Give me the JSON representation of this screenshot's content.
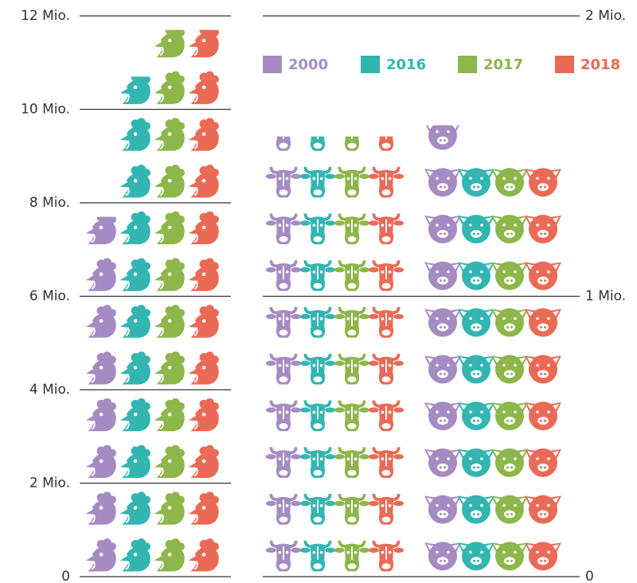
{
  "chart_data": {
    "type": "pictograph",
    "categories": [
      null,
      null,
      null
    ],
    "category_axes": [
      "y",
      "y2",
      "y2"
    ],
    "series": [
      {
        "name": "2000",
        "color": "#a58bc2",
        "values": [
          7.7,
          1.57,
          1.61
        ]
      },
      {
        "name": "2016",
        "color": "#33b5b1",
        "values": [
          10.7,
          1.57,
          1.46
        ]
      },
      {
        "name": "2017",
        "color": "#8db64b",
        "values": [
          11.7,
          1.57,
          1.46
        ]
      },
      {
        "name": "2018",
        "color": "#ea6a56",
        "values": [
          11.7,
          1.57,
          1.46
        ]
      }
    ],
    "ylim": [
      0,
      12
    ],
    "yticks": [
      0,
      {
        "value": 2,
        "label": "2 Mio."
      },
      {
        "value": 4,
        "label": "4 Mio."
      },
      {
        "value": 6,
        "label": "6 Mio."
      },
      {
        "value": 8,
        "label": "8 Mio."
      },
      {
        "value": 10,
        "label": "10 Mio."
      },
      {
        "value": 12,
        "label": "12 Mio."
      }
    ],
    "y2lim": [
      0,
      2
    ],
    "y2ticks": [
      0,
      {
        "value": 1,
        "label": "1 Mio."
      },
      {
        "value": 2,
        "label": "2 Mio."
      }
    ],
    "legend": "top-right"
  }
}
